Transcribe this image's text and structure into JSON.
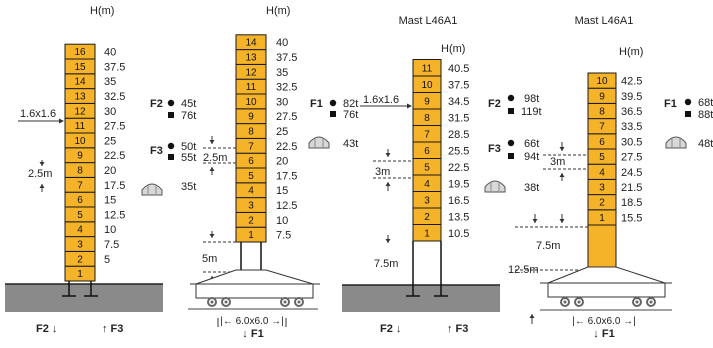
{
  "diagrams": [
    {
      "id": "d1",
      "title": "",
      "h_header": "H(m)",
      "sections": [
        "1",
        "2",
        "3",
        "4",
        "5",
        "6",
        "7",
        "8",
        "9",
        "10",
        "11",
        "12",
        "13",
        "14",
        "15",
        "16"
      ],
      "heights": [
        "5",
        "7.5",
        "10",
        "12.5",
        "15",
        "17.5",
        "20",
        "22.5",
        "25",
        "27.5",
        "30",
        "32.5",
        "35",
        "37.5",
        "40"
      ],
      "section_size": "1.6x1.6",
      "spacing": "2.5m",
      "F2": "F2",
      "F2_circle": "45t",
      "F2_square": "76t",
      "F3": "F3",
      "F3_circle": "50t",
      "F3_square": "55t",
      "anchor_load": "35t",
      "bottom_left": "F2 ↓",
      "bottom_right": "↑ F3"
    },
    {
      "id": "d2",
      "title": "",
      "h_header": "H(m)",
      "sections": [
        "1",
        "2",
        "3",
        "4",
        "5",
        "6",
        "7",
        "8",
        "9",
        "10",
        "11",
        "12",
        "13",
        "14"
      ],
      "heights": [
        "7.5",
        "10",
        "12.5",
        "15",
        "17.5",
        "20",
        "22.5",
        "25",
        "27.5",
        "30",
        "32.5",
        "35",
        "37.5",
        "40"
      ],
      "spacing": "2.5m",
      "base_height": "5m",
      "chassis": "6.0x6.0",
      "F1_label": "↓ F1"
    },
    {
      "id": "d3",
      "title": "Mast L46A1",
      "h_header": "H(m)",
      "sections": [
        "1",
        "2",
        "3",
        "4",
        "5",
        "6",
        "7",
        "8",
        "9",
        "10",
        "11"
      ],
      "heights": [
        "10.5",
        "13.5",
        "16.5",
        "19.5",
        "22.5",
        "25.5",
        "28.5",
        "31.5",
        "34.5",
        "37.5",
        "40.5"
      ],
      "section_size": "1.6x1.6",
      "spacing": "3m",
      "base_height": "7.5m",
      "F1": "F1",
      "F1_circle": "82t",
      "F1_square": "76t",
      "anchor_load": "43t",
      "bottom_left": "F2 ↓",
      "bottom_right": "↑ F3"
    },
    {
      "id": "d4",
      "title": "Mast L46A1",
      "h_header": "H(m)",
      "sections": [
        "1",
        "2",
        "3",
        "4",
        "5",
        "6",
        "7",
        "8",
        "9",
        "10"
      ],
      "heights": [
        "15.5",
        "18.5",
        "21.5",
        "24.5",
        "27.5",
        "30.5",
        "33.5",
        "36.5",
        "39.5",
        "42.5"
      ],
      "spacing": "3m",
      "base_height": "7.5m",
      "base_height2": "12.5m",
      "chassis": "6.0x6.0",
      "F2": "F2",
      "F2_circle": "98t",
      "F2_square": "119t",
      "F3": "F3",
      "F3_circle": "66t",
      "F3_square": "94t",
      "anchor_load": "38t",
      "F1_label": "↓ F1",
      "F1": "F1",
      "F1_circle": "68t",
      "F1_square": "88t",
      "anchor_load2": "48t"
    }
  ],
  "colors": {
    "mast_fill": "#f5b32a",
    "mast_border": "#1a1a1a",
    "ground": "#8a8a8a",
    "line": "#333333"
  },
  "icons": [
    "circle-bullet-icon",
    "square-bullet-icon",
    "anchor-cap-icon",
    "wheel-icon",
    "arrow-icon"
  ]
}
